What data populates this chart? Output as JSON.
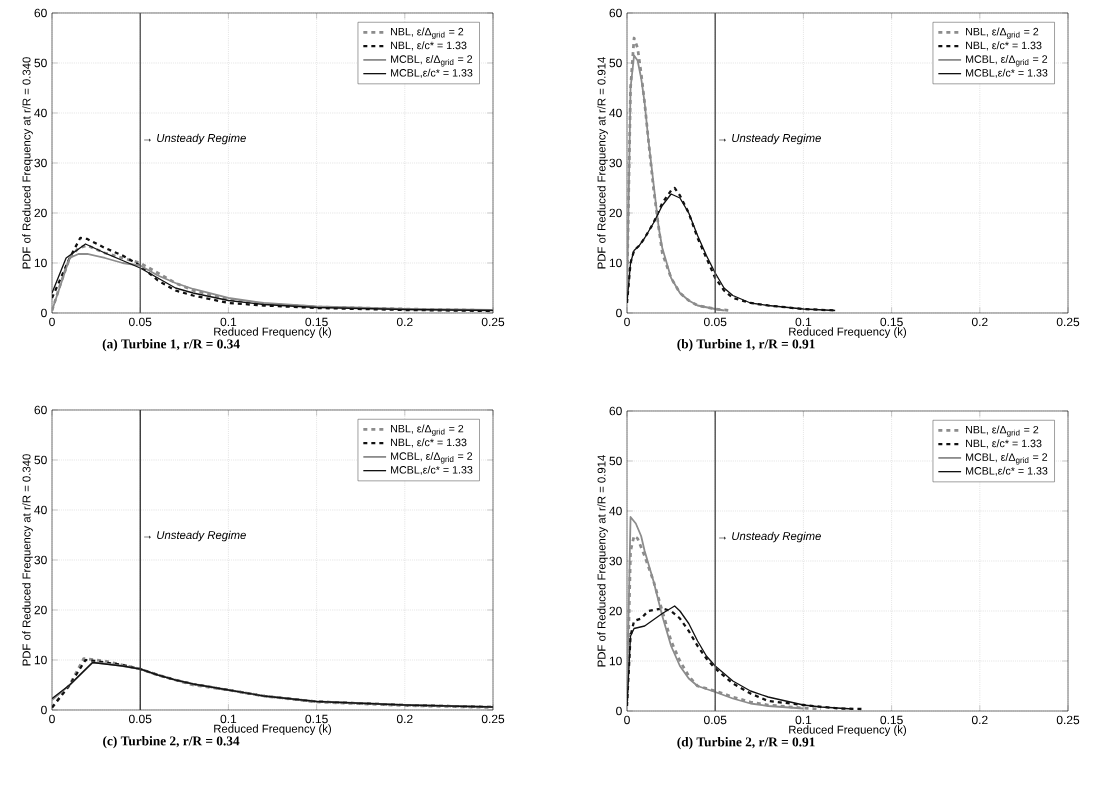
{
  "chart_data": [
    {
      "type": "line",
      "title": "(a) Turbine 1, r/R = 0.34",
      "xlabel": "Reduced Frequency (k)",
      "ylabel": "PDF of Reduced Frequency at r/R = 0.340",
      "xlim": [
        0,
        0.25
      ],
      "xticks": [
        0,
        0.05,
        0.1,
        0.15,
        0.2,
        0.25
      ],
      "ylim": [
        0,
        60
      ],
      "yticks": [
        0,
        10,
        20,
        30,
        40,
        50,
        60
      ],
      "grid": true,
      "legend": "top right",
      "ref_lines": [
        {
          "axis": "x",
          "value": 0.05,
          "label": "→ Unsteady Regime",
          "color": "#555555"
        }
      ],
      "series": [
        {
          "name": "NBL,  ε/Δ$_{grid}$ = 2",
          "color": "#8c8c8c",
          "line_style": "dashed",
          "x": [
            0,
            0.005,
            0.01,
            0.015,
            0.02,
            0.03,
            0.04,
            0.05,
            0.06,
            0.07,
            0.08,
            0.1,
            0.12,
            0.15,
            0.2,
            0.25
          ],
          "values": [
            0.5,
            6,
            11,
            13,
            13.5,
            12,
            11,
            10,
            8,
            6,
            4.5,
            2.8,
            1.8,
            1.2,
            0.8,
            0.5
          ]
        },
        {
          "name": "NBL, ε/c* = 1.33",
          "color": "#111111",
          "line_style": "dashed",
          "x": [
            0,
            0.01,
            0.016,
            0.02,
            0.03,
            0.04,
            0.05,
            0.06,
            0.07,
            0.08,
            0.1,
            0.12,
            0.15,
            0.2,
            0.25
          ],
          "values": [
            3,
            11,
            15,
            14.8,
            13,
            11.5,
            9.5,
            6.5,
            4.5,
            3.5,
            2,
            1.5,
            1,
            0.6,
            0.4
          ]
        },
        {
          "name": "MCBL, ε/Δ$_{grid}$ = 2",
          "color": "#8c8c8c",
          "line_style": "solid",
          "x": [
            0,
            0.01,
            0.015,
            0.02,
            0.03,
            0.04,
            0.05,
            0.06,
            0.07,
            0.08,
            0.1,
            0.12,
            0.15,
            0.2,
            0.25
          ],
          "values": [
            0.5,
            11,
            11.8,
            11.8,
            11,
            10,
            9.5,
            7.5,
            6,
            4.8,
            3,
            2,
            1.3,
            0.8,
            0.6
          ]
        },
        {
          "name": "MCBL,ε/c* = 1.33",
          "color": "#111111",
          "line_style": "solid",
          "x": [
            0,
            0.008,
            0.019,
            0.03,
            0.04,
            0.05,
            0.06,
            0.07,
            0.08,
            0.1,
            0.12,
            0.15,
            0.2,
            0.25
          ],
          "values": [
            4,
            11,
            13.8,
            12,
            10.5,
            9,
            7,
            5,
            4,
            2.5,
            1.7,
            1.1,
            0.7,
            0.5
          ]
        }
      ]
    },
    {
      "type": "line",
      "title": "(b) Turbine 1, r/R = 0.91",
      "xlabel": "Reduced Frequency (k)",
      "ylabel": "PDF of Reduced Frequency at r/R = 0.914",
      "xlim": [
        0,
        0.25
      ],
      "xticks": [
        0,
        0.05,
        0.1,
        0.15,
        0.2,
        0.25
      ],
      "ylim": [
        0,
        60
      ],
      "yticks": [
        0,
        10,
        20,
        30,
        40,
        50,
        60
      ],
      "grid": true,
      "legend": "top right",
      "ref_lines": [
        {
          "axis": "x",
          "value": 0.05,
          "label": "→ Unsteady Regime",
          "color": "#555555"
        }
      ],
      "series": [
        {
          "name": "NBL,  ε/Δ$_{grid}$ = 2",
          "color": "#8c8c8c",
          "line_style": "dashed",
          "x": [
            0,
            0.002,
            0.004,
            0.006,
            0.008,
            0.01,
            0.012,
            0.015,
            0.018,
            0.02,
            0.025,
            0.03,
            0.035,
            0.04,
            0.05,
            0.058
          ],
          "values": [
            5,
            45,
            55,
            53,
            48,
            42,
            35,
            25,
            17,
            12,
            7,
            4,
            2.5,
            1.5,
            0.8,
            0.5
          ]
        },
        {
          "name": "NBL, ε/c* = 1.33",
          "color": "#111111",
          "line_style": "dashed",
          "x": [
            0,
            0.002,
            0.004,
            0.007,
            0.01,
            0.015,
            0.02,
            0.025,
            0.027,
            0.03,
            0.035,
            0.04,
            0.045,
            0.05,
            0.055,
            0.06,
            0.07,
            0.08,
            0.1,
            0.118
          ],
          "values": [
            2,
            10,
            12.5,
            13.5,
            15,
            18,
            22,
            24.5,
            25,
            23.5,
            20,
            15,
            11,
            7,
            4.5,
            3,
            2,
            1.5,
            0.8,
            0.5
          ]
        },
        {
          "name": "MCBL, ε/Δ$_{grid}$ = 2",
          "color": "#8c8c8c",
          "line_style": "solid",
          "x": [
            0,
            0.002,
            0.004,
            0.006,
            0.008,
            0.01,
            0.012,
            0.015,
            0.018,
            0.02,
            0.025,
            0.03,
            0.035,
            0.04,
            0.05,
            0.055
          ],
          "values": [
            3,
            45,
            51.5,
            50.5,
            47,
            42,
            35,
            26,
            17,
            13,
            7,
            4,
            2.5,
            1.5,
            0.8,
            0.5
          ]
        },
        {
          "name": "MCBL,ε/c* = 1.33",
          "color": "#111111",
          "line_style": "solid",
          "x": [
            0,
            0.002,
            0.004,
            0.007,
            0.01,
            0.015,
            0.02,
            0.025,
            0.03,
            0.035,
            0.04,
            0.045,
            0.05,
            0.055,
            0.06,
            0.07,
            0.08,
            0.1,
            0.118
          ],
          "values": [
            2,
            10,
            12.5,
            13.5,
            15,
            18,
            21.5,
            23.8,
            23,
            20,
            15.5,
            11.5,
            8,
            5,
            3.5,
            2,
            1.5,
            0.8,
            0.5
          ]
        }
      ]
    },
    {
      "type": "line",
      "title": "(c) Turbine 2, r/R = 0.34",
      "xlabel": "Reduced Frequency (k)",
      "ylabel": "PDF of Reduced Frequency at r/R = 0.340",
      "xlim": [
        0,
        0.25
      ],
      "xticks": [
        0,
        0.05,
        0.1,
        0.15,
        0.2,
        0.25
      ],
      "ylim": [
        0,
        60
      ],
      "yticks": [
        0,
        10,
        20,
        30,
        40,
        50,
        60
      ],
      "grid": true,
      "legend": "top right",
      "ref_lines": [
        {
          "axis": "x",
          "value": 0.05,
          "label": "→ Unsteady Regime",
          "color": "#333333"
        }
      ],
      "series": [
        {
          "name": "NBL,  ε/Δ$_{grid}$ = 2",
          "color": "#8c8c8c",
          "line_style": "dashed",
          "x": [
            0,
            0.01,
            0.018,
            0.025,
            0.03,
            0.04,
            0.05,
            0.06,
            0.07,
            0.08,
            0.1,
            0.12,
            0.15,
            0.2,
            0.25
          ],
          "values": [
            0.5,
            5,
            10.3,
            10,
            9.8,
            9,
            8.2,
            7,
            6,
            5,
            4,
            2.8,
            1.6,
            0.9,
            0.5
          ]
        },
        {
          "name": "NBL, ε/c* = 1.33",
          "color": "#111111",
          "line_style": "dashed",
          "x": [
            0,
            0.01,
            0.019,
            0.025,
            0.03,
            0.04,
            0.05,
            0.06,
            0.07,
            0.08,
            0.1,
            0.12,
            0.15,
            0.2,
            0.25
          ],
          "values": [
            0.5,
            5,
            10,
            9.8,
            9.5,
            9,
            8.2,
            7,
            6,
            5.2,
            4,
            2.8,
            1.7,
            1,
            0.6
          ]
        },
        {
          "name": "MCBL, ε/Δ$_{grid}$ = 2",
          "color": "#8c8c8c",
          "line_style": "solid",
          "x": [
            0,
            0.01,
            0.023,
            0.03,
            0.04,
            0.05,
            0.06,
            0.07,
            0.08,
            0.1,
            0.12,
            0.15,
            0.2,
            0.25
          ],
          "values": [
            2,
            5,
            9.5,
            9.3,
            8.8,
            8.2,
            7,
            6,
            5.2,
            4,
            2.8,
            1.7,
            1,
            0.6
          ]
        },
        {
          "name": "MCBL,ε/c* = 1.33",
          "color": "#111111",
          "line_style": "solid",
          "x": [
            0,
            0.01,
            0.023,
            0.03,
            0.04,
            0.05,
            0.06,
            0.07,
            0.08,
            0.1,
            0.12,
            0.15,
            0.2,
            0.25
          ],
          "values": [
            2.3,
            5,
            9.5,
            9.2,
            8.8,
            8.2,
            7,
            6,
            5.2,
            4,
            2.8,
            1.7,
            1,
            0.6
          ]
        }
      ]
    },
    {
      "type": "line",
      "title": "(d) Turbine 2, r/R = 0.91",
      "xlabel": "Reduced Frequency (k)",
      "ylabel": "PDF of Reduced Frequency at r/R = 0.914",
      "xlim": [
        0,
        0.25
      ],
      "xticks": [
        0,
        0.05,
        0.1,
        0.15,
        0.2,
        0.25
      ],
      "ylim": [
        0,
        60
      ],
      "yticks": [
        0,
        10,
        20,
        30,
        40,
        50,
        60
      ],
      "grid": true,
      "legend": "top right",
      "ref_lines": [
        {
          "axis": "x",
          "value": 0.05,
          "label": "→ Unsteady Regime",
          "color": "#555555"
        }
      ],
      "series": [
        {
          "name": "NBL,  ε/Δ$_{grid}$ = 2",
          "color": "#8c8c8c",
          "line_style": "dashed",
          "x": [
            0,
            0.002,
            0.004,
            0.006,
            0.01,
            0.015,
            0.02,
            0.025,
            0.03,
            0.035,
            0.04,
            0.05,
            0.06,
            0.07,
            0.08,
            0.1,
            0.11
          ],
          "values": [
            2,
            32,
            35,
            34.5,
            31,
            26,
            20,
            14,
            10,
            7,
            5,
            4,
            2.8,
            1.8,
            1.2,
            0.6,
            0.4
          ]
        },
        {
          "name": "NBL, ε/c* = 1.33",
          "color": "#111111",
          "line_style": "dashed",
          "x": [
            0,
            0.002,
            0.004,
            0.008,
            0.012,
            0.02,
            0.025,
            0.03,
            0.035,
            0.04,
            0.045,
            0.05,
            0.06,
            0.07,
            0.08,
            0.1,
            0.12,
            0.133
          ],
          "values": [
            1,
            15,
            18,
            18.5,
            20,
            20.5,
            20,
            18.5,
            16,
            13,
            10.5,
            8.5,
            5.5,
            3.5,
            2,
            1.2,
            0.5,
            0.4
          ]
        },
        {
          "name": "MCBL, ε/Δ$_{grid}$ = 2",
          "color": "#8c8c8c",
          "line_style": "solid",
          "x": [
            0,
            0.002,
            0.005,
            0.008,
            0.01,
            0.015,
            0.02,
            0.025,
            0.03,
            0.035,
            0.04,
            0.05,
            0.06,
            0.07,
            0.08,
            0.1
          ],
          "values": [
            3,
            38.8,
            37.5,
            35,
            32,
            26,
            19,
            13,
            9,
            6.5,
            5,
            3.8,
            2.5,
            1.5,
            1,
            0.5
          ]
        },
        {
          "name": "MCBL,ε/c* = 1.33",
          "color": "#111111",
          "line_style": "solid",
          "x": [
            0,
            0.002,
            0.004,
            0.01,
            0.02,
            0.027,
            0.03,
            0.035,
            0.04,
            0.045,
            0.05,
            0.06,
            0.07,
            0.08,
            0.09,
            0.1,
            0.11,
            0.128
          ],
          "values": [
            1,
            15,
            16.5,
            17,
            19.5,
            21,
            20,
            17.5,
            14,
            11,
            9,
            6,
            4,
            2.8,
            2,
            1.2,
            0.8,
            0.4
          ]
        }
      ]
    }
  ]
}
